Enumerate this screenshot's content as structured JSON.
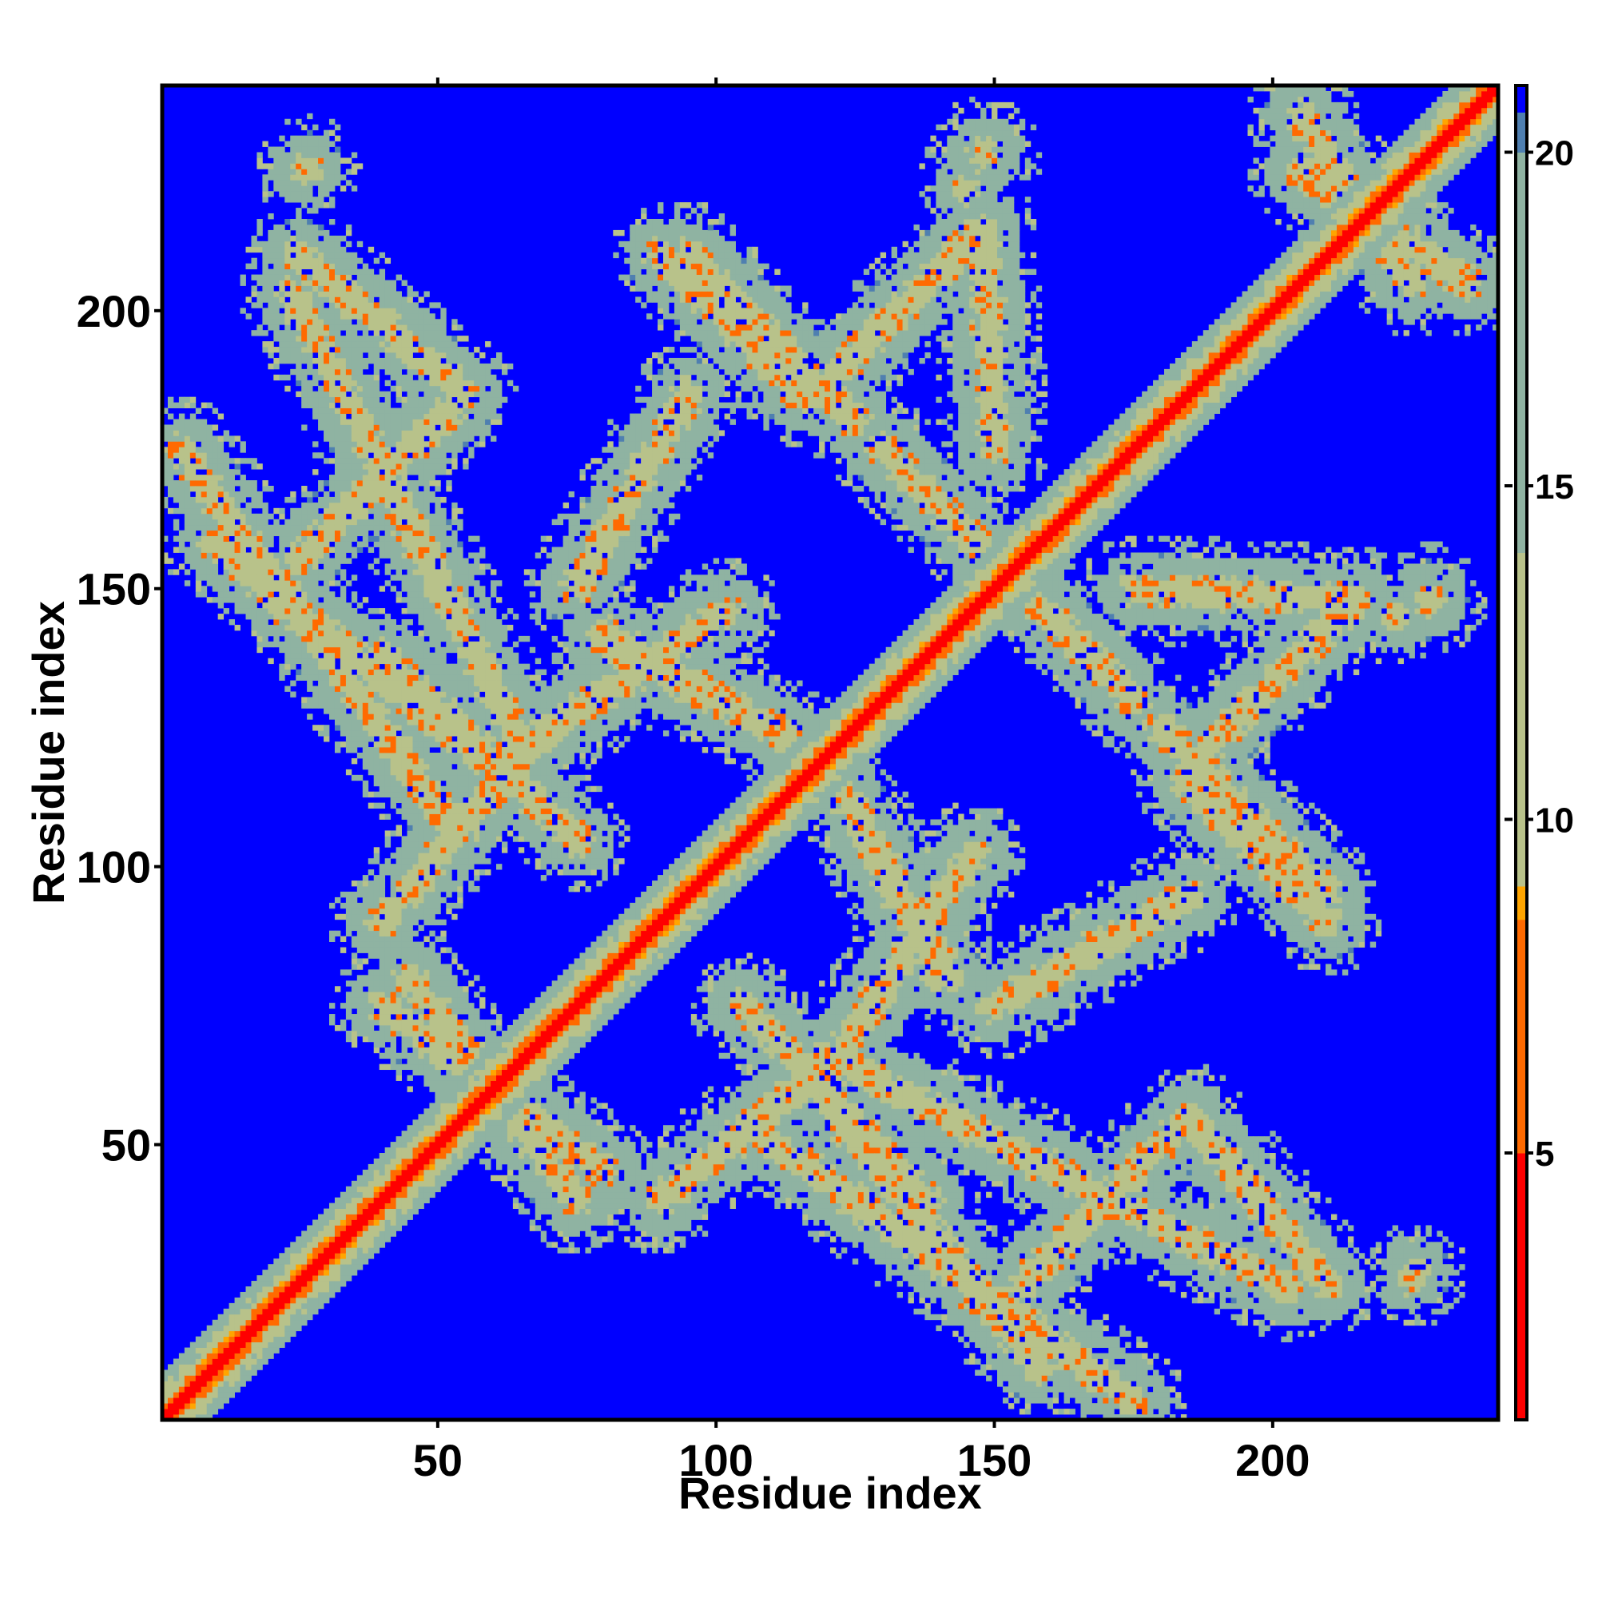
{
  "chart_data": {
    "type": "heatmap",
    "title": "",
    "xlabel": "Residue index",
    "ylabel": "Residue index",
    "xlim": [
      1,
      240
    ],
    "ylim": [
      1,
      240
    ],
    "x_ticks": [
      50,
      100,
      150,
      200
    ],
    "y_ticks": [
      50,
      100,
      150,
      200
    ],
    "colorbar": {
      "range": [
        1,
        21
      ],
      "ticks": [
        5,
        10,
        15,
        20
      ],
      "colors": [
        {
          "value": 1,
          "color": "#ff0000"
        },
        {
          "value": 5,
          "color": "#ff6a00"
        },
        {
          "value": 8.5,
          "color": "#ffa500"
        },
        {
          "value": 9,
          "color": "#b8c28a"
        },
        {
          "value": 14,
          "color": "#8fb3a2"
        },
        {
          "value": 20,
          "color": "#4f7fb0"
        },
        {
          "value": 20.6,
          "color": "#0000ff"
        }
      ],
      "background_color": "#0000ff"
    },
    "symmetric": true,
    "diagonal_band": {
      "center_value": 1,
      "half_width_residues": 8
    },
    "contact_bands": [
      {
        "from": [
          24,
          203
        ],
        "to": [
          66,
          120
        ],
        "value": 9
      },
      {
        "from": [
          4,
          175
        ],
        "to": [
          52,
          108
        ],
        "value": 9
      },
      {
        "from": [
          10,
          158
        ],
        "to": [
          60,
          118
        ],
        "value": 9
      },
      {
        "from": [
          60,
          118
        ],
        "to": [
          102,
          146
        ],
        "value": 9
      },
      {
        "from": [
          80,
          142
        ],
        "to": [
          115,
          122
        ],
        "value": 9
      },
      {
        "from": [
          90,
          210
        ],
        "to": [
          115,
          185
        ],
        "value": 9
      },
      {
        "from": [
          118,
          185
        ],
        "to": [
          148,
          215
        ],
        "value": 9
      },
      {
        "from": [
          140,
          165
        ],
        "to": [
          175,
          130
        ],
        "value": 9
      },
      {
        "from": [
          175,
          150
        ],
        "to": [
          215,
          148
        ],
        "value": 9
      },
      {
        "from": [
          180,
          125
        ],
        "to": [
          210,
          95
        ],
        "value": 9
      },
      {
        "from": [
          125,
          110
        ],
        "to": [
          140,
          80
        ],
        "value": 9
      },
      {
        "from": [
          105,
          75
        ],
        "to": [
          138,
          40
        ],
        "value": 9
      },
      {
        "from": [
          40,
          75
        ],
        "to": [
          80,
          45
        ],
        "value": 9
      },
      {
        "from": [
          90,
          40
        ],
        "to": [
          120,
          65
        ],
        "value": 9
      },
      {
        "from": [
          155,
          25
        ],
        "to": [
          185,
          55
        ],
        "value": 9
      },
      {
        "from": [
          185,
          55
        ],
        "to": [
          210,
          25
        ],
        "value": 9
      },
      {
        "from": [
          150,
          75
        ],
        "to": [
          185,
          95
        ],
        "value": 9
      },
      {
        "from": [
          205,
          225
        ],
        "to": [
          235,
          205
        ],
        "value": 9
      }
    ],
    "contact_spots": [
      {
        "center": [
          26,
          225
        ],
        "radius": 6,
        "value": 11
      },
      {
        "center": [
          148,
          228
        ],
        "radius": 7,
        "value": 12
      },
      {
        "center": [
          226,
          27
        ],
        "radius": 6,
        "value": 11
      },
      {
        "center": [
          146,
          22
        ],
        "radius": 5,
        "value": 13
      },
      {
        "center": [
          222,
          145
        ],
        "radius": 6,
        "value": 12
      }
    ]
  }
}
